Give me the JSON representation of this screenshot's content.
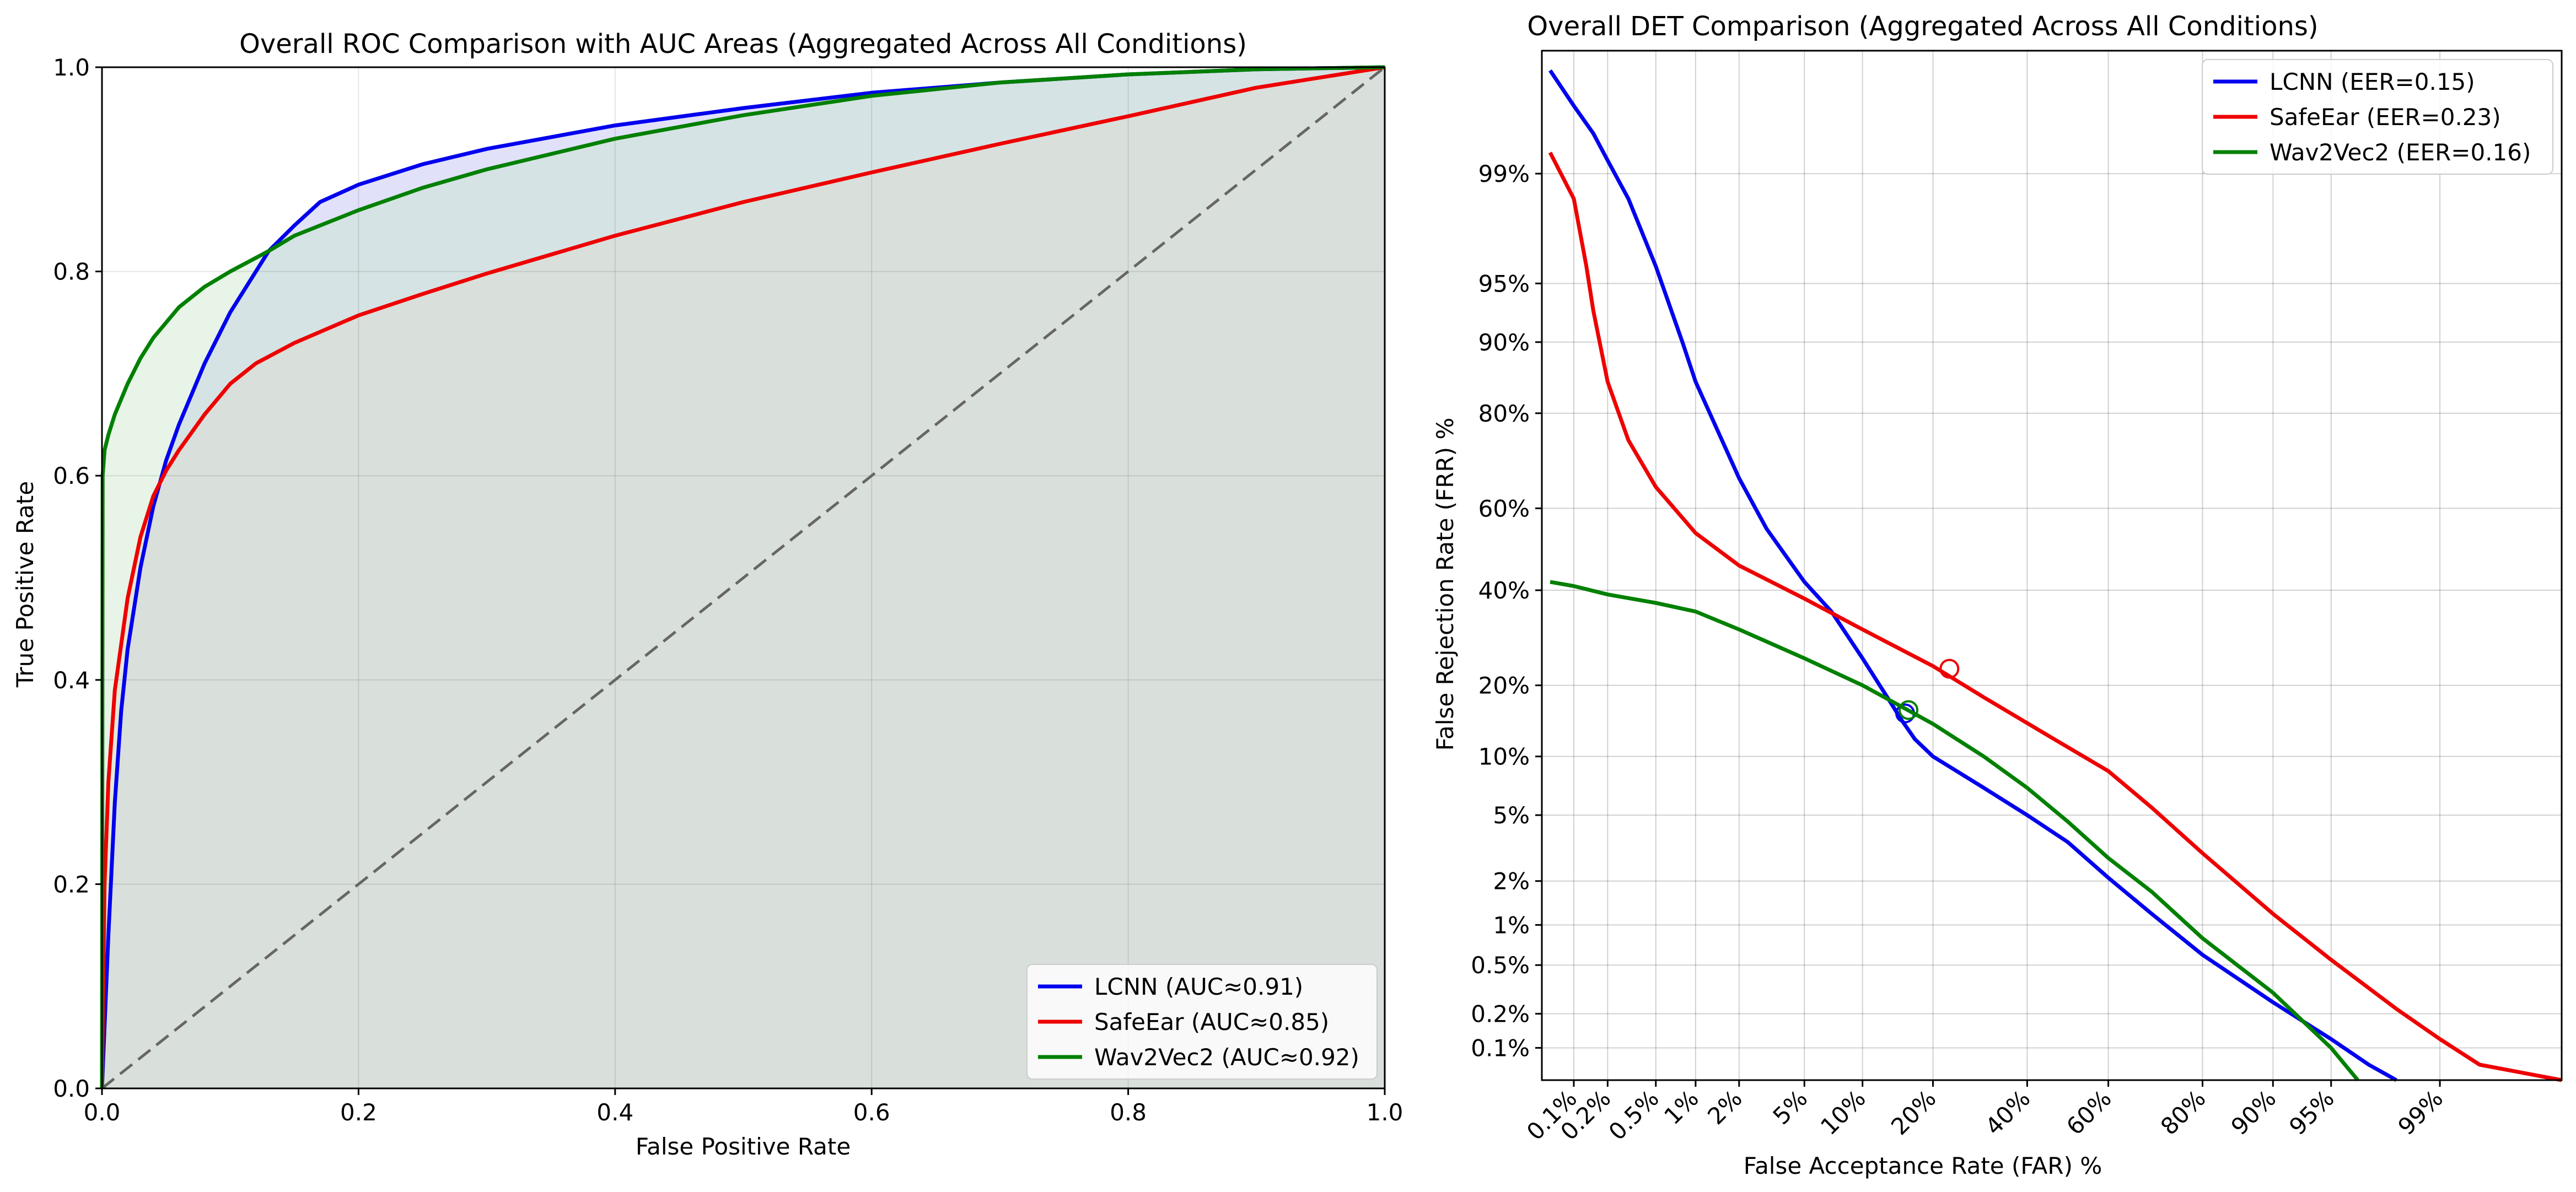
{
  "chart_data": [
    {
      "type": "line",
      "title": "Overall ROC Comparison with AUC Areas (Aggregated Across All Conditions)",
      "xlabel": "False Positive Rate",
      "ylabel": "True Positive Rate",
      "xlim": [
        0,
        1
      ],
      "ylim": [
        0,
        1
      ],
      "xticks": [
        0.0,
        0.2,
        0.4,
        0.6,
        0.8,
        1.0
      ],
      "xtick_labels": [
        "0.0",
        "0.2",
        "0.4",
        "0.6",
        "0.8",
        "1.0"
      ],
      "yticks": [
        0.0,
        0.2,
        0.4,
        0.6,
        0.8,
        1.0
      ],
      "ytick_labels": [
        "0.0",
        "0.2",
        "0.4",
        "0.6",
        "0.8",
        "1.0"
      ],
      "grid": true,
      "area_fill": true,
      "legend_position": "lower-right",
      "chance_line": {
        "x": [
          0,
          1
        ],
        "y": [
          0,
          1
        ],
        "style": "dashed",
        "color": "#666666"
      },
      "series": [
        {
          "name": "LCNN (AUC≈0.91)",
          "color": "#0000ee",
          "fill": "#bcbcf4",
          "x": [
            0,
            0.005,
            0.01,
            0.015,
            0.02,
            0.03,
            0.04,
            0.05,
            0.06,
            0.07,
            0.08,
            0.1,
            0.12,
            0.13,
            0.15,
            0.17,
            0.2,
            0.25,
            0.3,
            0.4,
            0.5,
            0.6,
            0.7,
            0.8,
            0.9,
            1.0
          ],
          "y": [
            0,
            0.15,
            0.28,
            0.37,
            0.43,
            0.51,
            0.57,
            0.615,
            0.65,
            0.68,
            0.71,
            0.76,
            0.8,
            0.82,
            0.845,
            0.868,
            0.885,
            0.905,
            0.92,
            0.943,
            0.96,
            0.975,
            0.985,
            0.993,
            0.998,
            1.0
          ]
        },
        {
          "name": "SafeEar (AUC≈0.85)",
          "color": "#ee0000",
          "fill": "#ead0d0",
          "x": [
            0,
            0.002,
            0.005,
            0.01,
            0.02,
            0.03,
            0.04,
            0.05,
            0.06,
            0.08,
            0.1,
            0.12,
            0.15,
            0.2,
            0.25,
            0.3,
            0.4,
            0.5,
            0.6,
            0.7,
            0.8,
            0.9,
            1.0
          ],
          "y": [
            0,
            0.2,
            0.3,
            0.39,
            0.48,
            0.54,
            0.58,
            0.605,
            0.625,
            0.66,
            0.69,
            0.71,
            0.73,
            0.757,
            0.778,
            0.798,
            0.835,
            0.868,
            0.897,
            0.925,
            0.952,
            0.98,
            1.0
          ]
        },
        {
          "name": "Wav2Vec2 (AUC≈0.92)",
          "color": "#008000",
          "fill": "#c9e6c9",
          "x": [
            0,
            0.0005,
            0.002,
            0.005,
            0.01,
            0.02,
            0.03,
            0.04,
            0.06,
            0.08,
            0.1,
            0.13,
            0.15,
            0.2,
            0.25,
            0.3,
            0.4,
            0.5,
            0.6,
            0.7,
            0.8,
            0.9,
            1.0
          ],
          "y": [
            0,
            0.6,
            0.625,
            0.64,
            0.66,
            0.69,
            0.715,
            0.735,
            0.765,
            0.785,
            0.8,
            0.82,
            0.835,
            0.86,
            0.882,
            0.9,
            0.93,
            0.953,
            0.972,
            0.985,
            0.993,
            0.998,
            1.0
          ]
        }
      ]
    },
    {
      "type": "line",
      "title": "Overall DET Comparison (Aggregated Across All Conditions)",
      "xlabel": "False Acceptance Rate (FAR) %",
      "ylabel": "False Rejection Rate (FRR) %",
      "scale": "normal-deviate (probit)",
      "xlim": [
        0.05,
        99.9
      ],
      "ylim": [
        0.05,
        99.9
      ],
      "ticks": [
        0.1,
        0.2,
        0.5,
        1,
        2,
        5,
        10,
        20,
        40,
        60,
        80,
        90,
        95,
        99
      ],
      "tick_labels": [
        "0.1%",
        "0.2%",
        "0.5%",
        "1%",
        "2%",
        "5%",
        "10%",
        "20%",
        "40%",
        "60%",
        "80%",
        "90%",
        "95%",
        "99%"
      ],
      "grid": true,
      "legend_position": "upper-right",
      "series": [
        {
          "name": "LCNN (EER=0.15)",
          "color": "#0000ee",
          "eer_point": [
            15.5,
            15.5
          ],
          "x": [
            0.06,
            0.1,
            0.15,
            0.2,
            0.3,
            0.5,
            0.8,
            1,
            2,
            3,
            5,
            7,
            10,
            13,
            15,
            17,
            20,
            30,
            40,
            50,
            60,
            70,
            80,
            90,
            95,
            97,
            98
          ],
          "y": [
            99.85,
            99.7,
            99.5,
            99.2,
            98.5,
            96,
            90,
            85,
            67,
            55,
            42,
            35,
            25,
            18,
            14.5,
            12,
            10,
            7,
            5,
            3.5,
            2.1,
            1.2,
            0.6,
            0.25,
            0.12,
            0.07,
            0.05
          ]
        },
        {
          "name": "SafeEar (EER=0.23)",
          "color": "#ee0000",
          "eer_point": [
            23,
            23
          ],
          "x": [
            0.06,
            0.1,
            0.13,
            0.15,
            0.2,
            0.3,
            0.5,
            1,
            2,
            5,
            10,
            20,
            30,
            45,
            60,
            70,
            80,
            90,
            95,
            98,
            99,
            99.5,
            99.9
          ],
          "y": [
            99.3,
            98.5,
            96,
            93,
            85,
            75,
            65,
            54,
            46,
            38,
            31,
            23.5,
            18,
            12.5,
            8.5,
            5.5,
            3,
            1.2,
            0.55,
            0.22,
            0.12,
            0.07,
            0.05
          ]
        },
        {
          "name": "Wav2Vec2 (EER=0.16)",
          "color": "#008000",
          "eer_point": [
            16,
            16
          ],
          "x": [
            0.06,
            0.1,
            0.2,
            0.5,
            1,
            2,
            5,
            10,
            15,
            20,
            30,
            40,
            50,
            60,
            70,
            80,
            90,
            95,
            96.5
          ],
          "y": [
            42,
            41,
            39,
            37,
            35,
            31,
            25,
            20,
            16.5,
            14,
            10,
            7,
            4.6,
            2.8,
            1.7,
            0.8,
            0.3,
            0.1,
            0.05
          ]
        }
      ]
    }
  ]
}
